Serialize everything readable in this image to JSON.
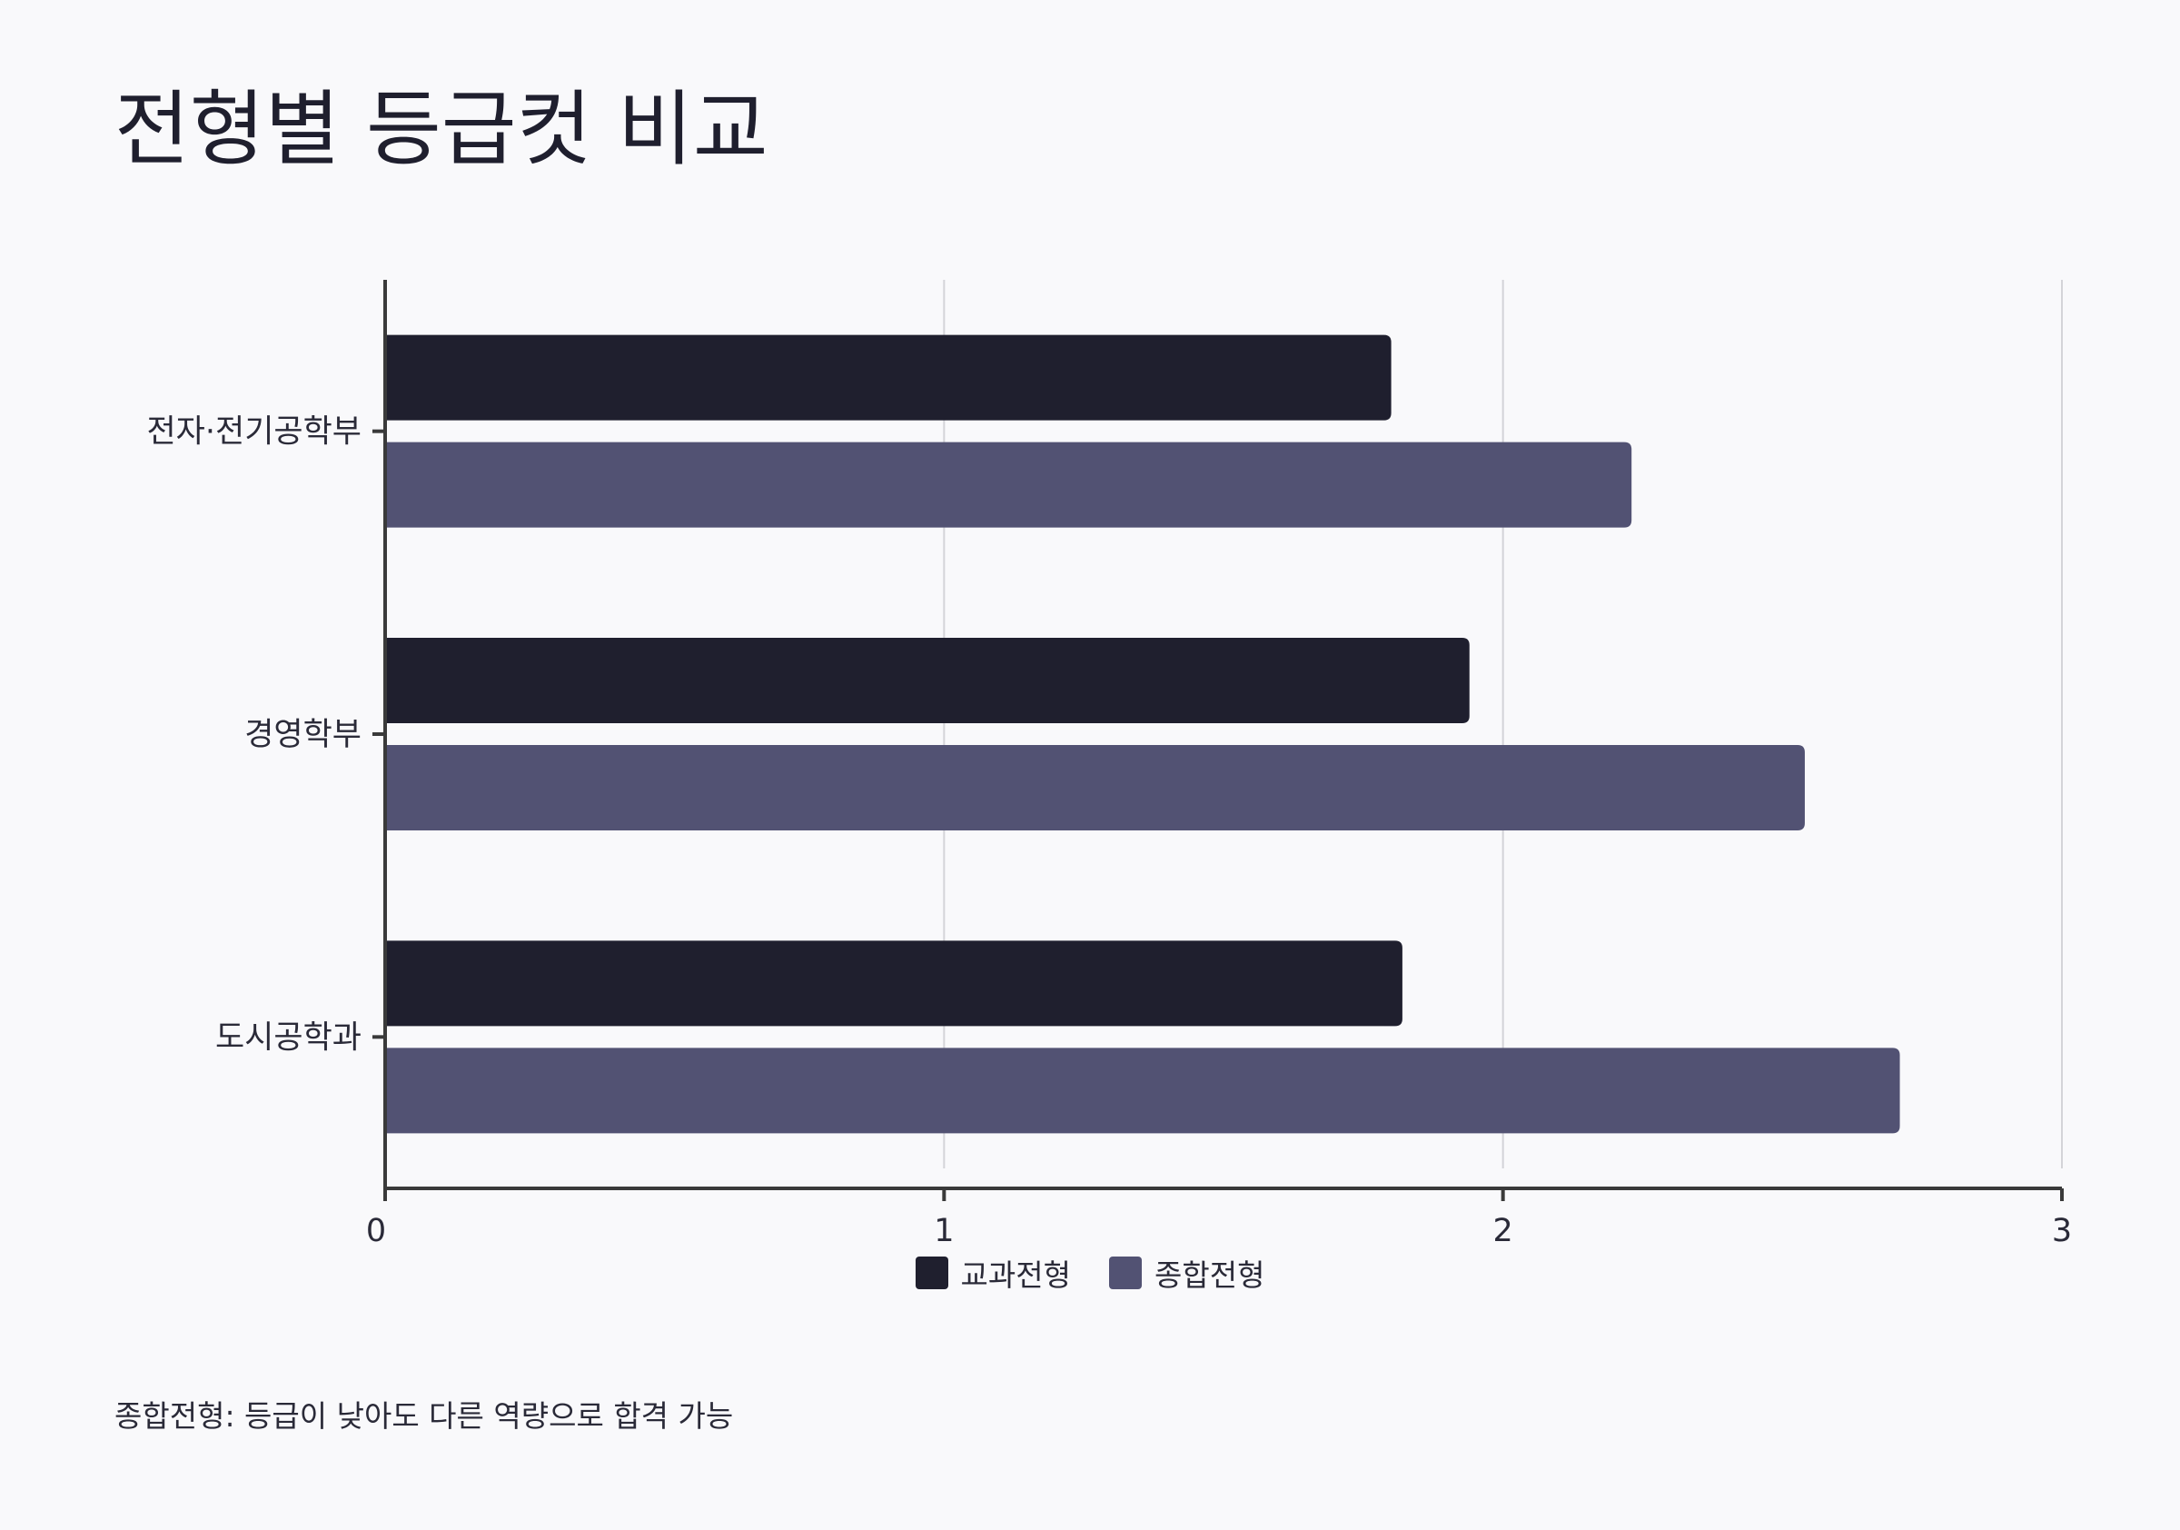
{
  "title": "전형별 등급컷 비교",
  "footnote": "종합전형: 등급이 낮아도 다른 역량으로 합격 가능",
  "colors": {
    "background": "#f9f9fb",
    "series_1": "#1f1f2e",
    "series_2": "#525273",
    "grid": "#d4d4d8",
    "axis": "#3a3a3a"
  },
  "chart_data": {
    "type": "bar",
    "orientation": "horizontal",
    "title": "전형별 등급컷 비교",
    "categories": [
      "전자·전기공학부",
      "경영학부",
      "도시공학과"
    ],
    "series": [
      {
        "name": "교과전형",
        "values": [
          1.8,
          1.94,
          1.82
        ]
      },
      {
        "name": "종합전형",
        "values": [
          2.23,
          2.54,
          2.71
        ]
      }
    ],
    "xlim": [
      0,
      3
    ],
    "xticks": [
      "0",
      "1",
      "2",
      "3"
    ],
    "grid": "vertical",
    "legend": "bottom-center"
  }
}
